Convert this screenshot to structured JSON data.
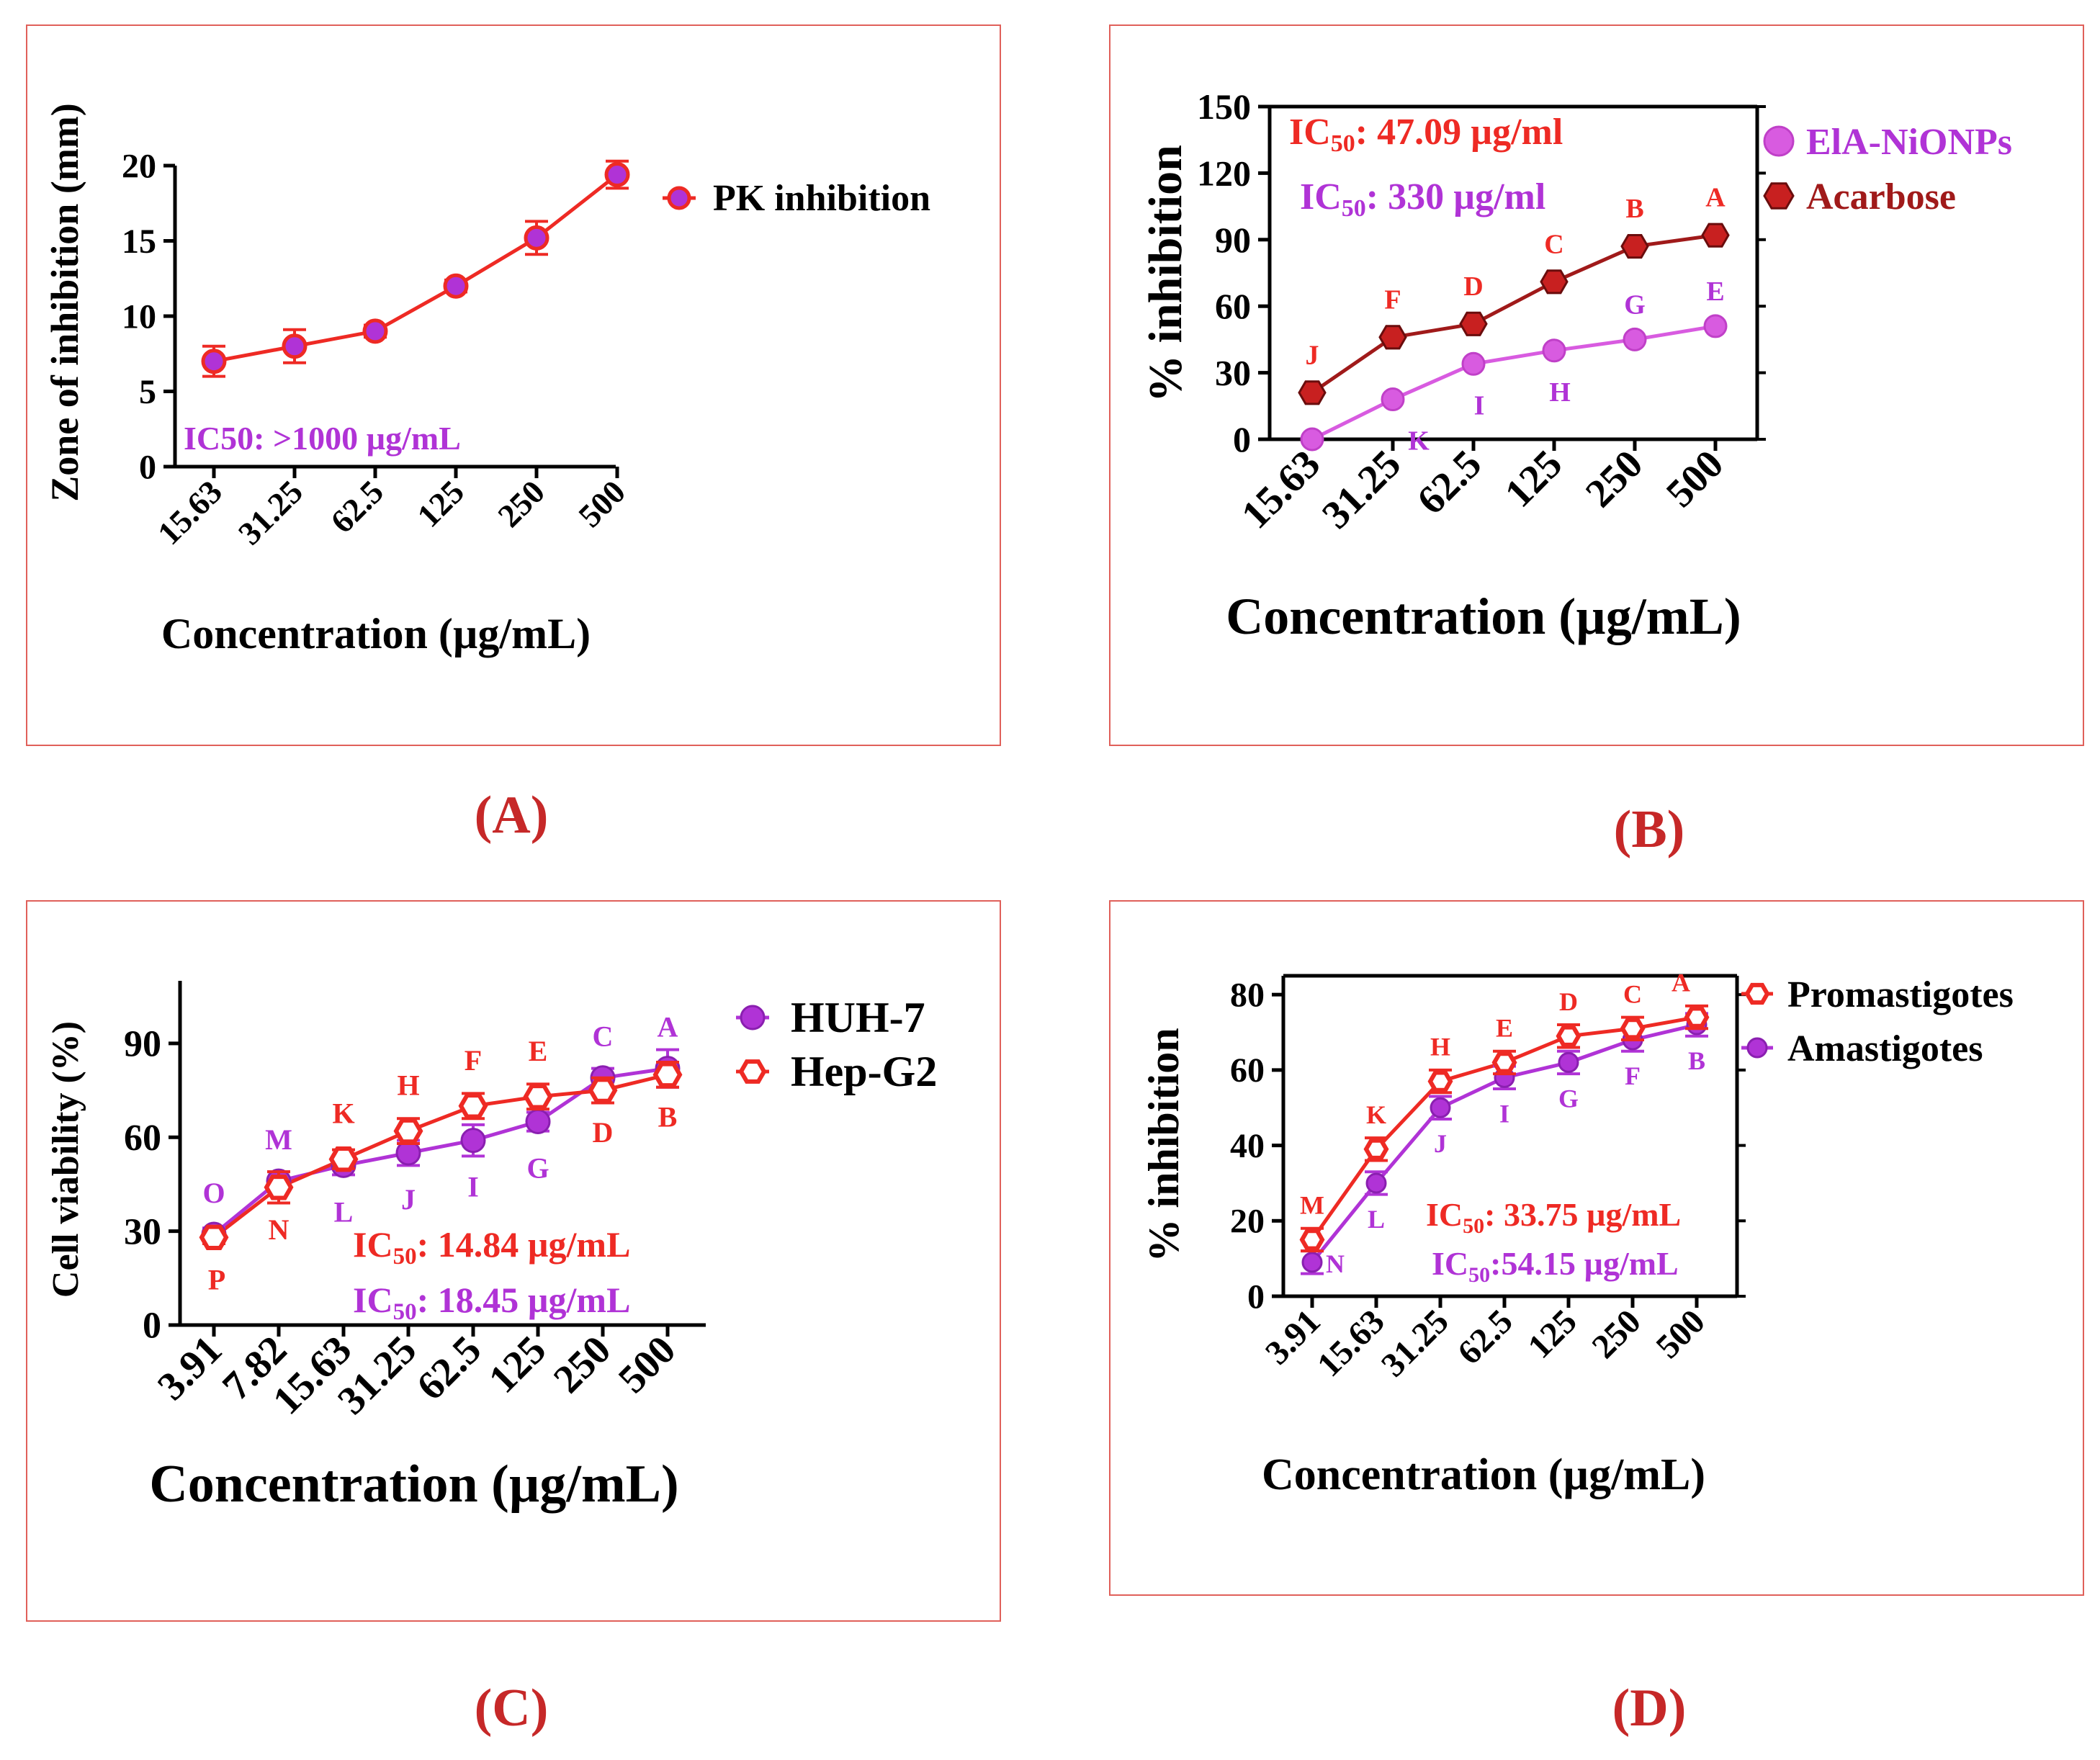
{
  "panel_labels": [
    "(A)",
    "(B)",
    "(C)",
    "(D)"
  ],
  "colors": {
    "red": "#ee2a24",
    "purple": "#b033d6",
    "darkred": "#a01a1a",
    "magenta": "#d85be0",
    "frame": "#e0605a",
    "label": "#c62828"
  },
  "chart_data": [
    {
      "type": "line",
      "title": "",
      "xlabel": "Concentration (µg/mL)",
      "ylabel": "Zone of inhibition (mm)",
      "categories": [
        "15.63",
        "31.25",
        "62.5",
        "125",
        "250",
        "500"
      ],
      "ylim": [
        0,
        20
      ],
      "yticks": [
        0,
        5,
        10,
        15,
        20
      ],
      "series": [
        {
          "name": "PK inhibition",
          "values": [
            7,
            8,
            9,
            12,
            15.2,
            19.4
          ],
          "errors": [
            1,
            1.1,
            0.4,
            0.4,
            1.1,
            0.9
          ]
        }
      ],
      "annotations": [
        {
          "text": "IC50:  >1000 µg/mL"
        }
      ]
    },
    {
      "type": "line",
      "title": "",
      "xlabel": "Concentration (µg/mL)",
      "ylabel": "% inhibition",
      "categories": [
        "15.63",
        "31.25",
        "62.5",
        "125",
        "250",
        "500"
      ],
      "ylim": [
        0,
        150
      ],
      "yticks": [
        0,
        30,
        60,
        90,
        120,
        150
      ],
      "series": [
        {
          "name": "ElA-NiONPs",
          "values": [
            0,
            18,
            34,
            40,
            45,
            51
          ],
          "letters": [
            "",
            "K",
            "I",
            "H",
            "G",
            "E"
          ]
        },
        {
          "name": "Acarbose",
          "values": [
            21,
            46,
            52,
            71,
            87,
            92
          ],
          "letters": [
            "J",
            "F",
            "D",
            "C",
            "B",
            "A"
          ]
        }
      ],
      "annotations": [
        {
          "prefix": "IC",
          "sub": "50",
          "suffix": ": 47.09 µg/ml"
        },
        {
          "prefix": "IC",
          "sub": "50",
          "suffix": ": 330 µg/ml"
        }
      ]
    },
    {
      "type": "line",
      "title": "",
      "xlabel": "Concentration (µg/mL)",
      "ylabel": "Cell viability (%)",
      "categories": [
        "3.91",
        "7.82",
        "15.63",
        "31.25",
        "62.5",
        "125",
        "250",
        "500"
      ],
      "ylim": [
        0,
        110
      ],
      "yticks": [
        0,
        30,
        60,
        90
      ],
      "series": [
        {
          "name": "HUH-7",
          "values": [
            29,
            46,
            51,
            55,
            59,
            65,
            79,
            82
          ],
          "errors": [
            2,
            3,
            3,
            4,
            5,
            3,
            3,
            6
          ],
          "letters": [
            "O",
            "M",
            "L",
            "J",
            "I",
            "G",
            "C",
            "A"
          ]
        },
        {
          "name": "Hep-G2",
          "values": [
            28,
            44,
            53,
            62,
            70,
            73,
            75,
            80
          ],
          "errors": [
            2,
            5,
            3,
            4,
            4,
            4,
            4,
            4
          ],
          "letters": [
            "P",
            "N",
            "K",
            "H",
            "F",
            "E",
            "D",
            "B"
          ]
        }
      ],
      "annotations": [
        {
          "prefix": "IC",
          "sub": "50",
          "suffix": ": 14.84 µg/mL"
        },
        {
          "prefix": "IC",
          "sub": "50",
          "suffix": ": 18.45 µg/mL"
        }
      ]
    },
    {
      "type": "line",
      "title": "",
      "xlabel": "Concentration (µg/mL)",
      "ylabel": "% inhibition",
      "categories": [
        "3.91",
        "15.63",
        "31.25",
        "62.5",
        "125",
        "250",
        "500"
      ],
      "ylim": [
        0,
        85
      ],
      "yticks": [
        0,
        20,
        40,
        60,
        80
      ],
      "series": [
        {
          "name": "Promastigotes",
          "values": [
            15,
            39,
            57,
            62,
            69,
            71,
            74
          ],
          "errors": [
            3,
            3,
            3,
            3,
            3,
            3,
            3
          ],
          "letters": [
            "M",
            "K",
            "H",
            "E",
            "D",
            "C",
            "A"
          ]
        },
        {
          "name": "Amastigotes",
          "values": [
            9,
            30,
            50,
            58,
            62,
            68,
            72
          ],
          "errors": [
            3,
            3,
            3,
            3,
            3,
            3,
            3
          ],
          "letters": [
            "N",
            "L",
            "J",
            "I",
            "G",
            "F",
            "B"
          ]
        }
      ],
      "annotations": [
        {
          "prefix": "IC",
          "sub": "50",
          "suffix": ": 33.75 µg/mL"
        },
        {
          "prefix": "IC",
          "sub": "50",
          "suffix": ":54.15 µg/mL"
        }
      ]
    }
  ]
}
